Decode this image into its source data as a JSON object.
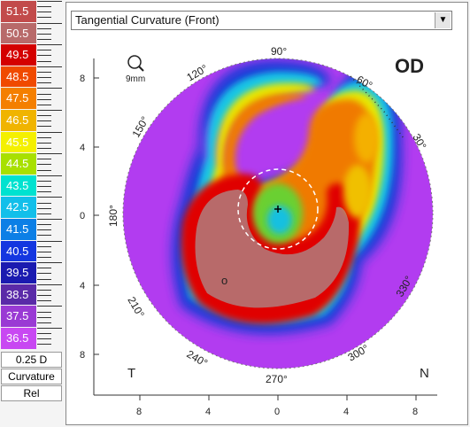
{
  "legend": {
    "items": [
      {
        "label": "51.5",
        "color": "#c24b4b"
      },
      {
        "label": "50.5",
        "color": "#b86a6a"
      },
      {
        "label": "49.5",
        "color": "#d40000"
      },
      {
        "label": "48.5",
        "color": "#f04a00"
      },
      {
        "label": "47.5",
        "color": "#f47f00"
      },
      {
        "label": "46.5",
        "color": "#f0b400"
      },
      {
        "label": "45.5",
        "color": "#f4f000"
      },
      {
        "label": "44.5",
        "color": "#a8e000"
      },
      {
        "label": "43.5",
        "color": "#00e2d0"
      },
      {
        "label": "42.5",
        "color": "#12bfea"
      },
      {
        "label": "41.5",
        "color": "#0c7fe6"
      },
      {
        "label": "40.5",
        "color": "#1436e0"
      },
      {
        "label": "39.5",
        "color": "#1a1ab0"
      },
      {
        "label": "38.5",
        "color": "#5a2aa8"
      },
      {
        "label": "37.5",
        "color": "#9a3ad4"
      },
      {
        "label": "36.5",
        "color": "#c848f2"
      }
    ],
    "step": "0.25 D",
    "type": "Curvature",
    "scale_mode": "Rel"
  },
  "map": {
    "selected_view": "Tangential Curvature (Front)",
    "eye": "OD",
    "zoom_label": "9mm",
    "left_side": "T",
    "right_side": "N",
    "angles": [
      "90°",
      "60°",
      "30°",
      "330°",
      "300°",
      "270°",
      "240°",
      "210°",
      "180°",
      "150°",
      "120°"
    ],
    "x_axis": [
      "8",
      "4",
      "0",
      "4",
      "8"
    ],
    "y_axis": [
      "8",
      "4",
      "0",
      "4",
      "8"
    ],
    "center_marker": "o"
  }
}
